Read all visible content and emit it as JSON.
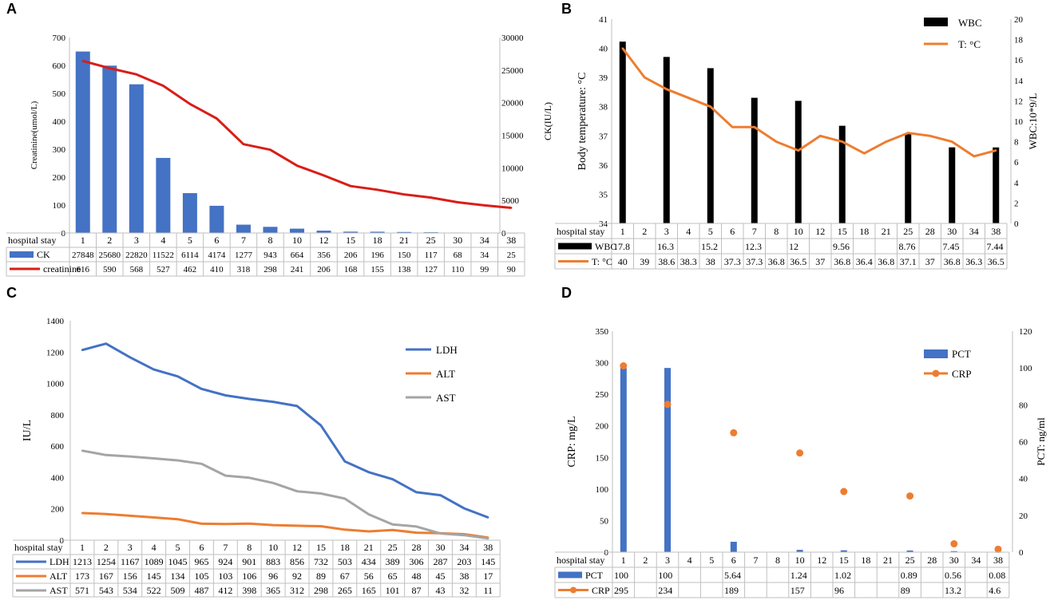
{
  "chart_data": [
    {
      "panel": "A",
      "type": "bar+line",
      "table_header": "hospital stay",
      "categories": [
        "1",
        "2",
        "3",
        "4",
        "5",
        "6",
        "7",
        "8",
        "10",
        "12",
        "15",
        "18",
        "21",
        "25",
        "30",
        "34",
        "38"
      ],
      "left_axis": {
        "label": "Creatinine(umol/L)",
        "range": [
          0,
          700
        ],
        "ticks": [
          "0",
          "100",
          "200",
          "300",
          "400",
          "500",
          "600",
          "700"
        ]
      },
      "right_axis": {
        "label": "CK(IU/L)",
        "range": [
          0,
          30000
        ],
        "ticks": [
          "0",
          "5000",
          "10000",
          "15000",
          "20000",
          "25000",
          "30000"
        ]
      },
      "series": [
        {
          "name": "CK",
          "kind": "bar",
          "axis": "right",
          "color": "#4472C4",
          "values": [
            27848,
            25680,
            22820,
            11522,
            6114,
            4174,
            1277,
            943,
            664,
            356,
            206,
            196,
            150,
            117,
            68,
            34,
            25
          ]
        },
        {
          "name": "creatinine",
          "kind": "line",
          "axis": "left",
          "color": "#D91E18",
          "values": [
            616,
            590,
            568,
            527,
            462,
            410,
            318,
            298,
            241,
            206,
            168,
            155,
            138,
            127,
            110,
            99,
            90
          ]
        }
      ]
    },
    {
      "panel": "B",
      "type": "bar+line",
      "table_header": "hospital stay",
      "categories": [
        "1",
        "2",
        "3",
        "4",
        "5",
        "6",
        "7",
        "8",
        "10",
        "12",
        "15",
        "18",
        "21",
        "25",
        "28",
        "30",
        "34",
        "38"
      ],
      "left_axis": {
        "label": "Body temperature: °C",
        "range": [
          34,
          41
        ],
        "ticks": [
          "34",
          "35",
          "36",
          "37",
          "38",
          "39",
          "40",
          "41"
        ]
      },
      "right_axis": {
        "label": "WBC:10*9/L",
        "range": [
          0,
          20
        ],
        "ticks": [
          "0",
          "2",
          "4",
          "6",
          "8",
          "10",
          "12",
          "14",
          "16",
          "18",
          "20"
        ]
      },
      "series": [
        {
          "name": "WBC",
          "kind": "bar",
          "axis": "right",
          "color": "#000000",
          "values": [
            17.8,
            null,
            16.3,
            null,
            15.2,
            null,
            12.3,
            null,
            12,
            null,
            9.56,
            null,
            null,
            8.76,
            null,
            7.45,
            null,
            7.44
          ],
          "labels": [
            "17.8",
            "",
            "16.3",
            "",
            "15.2",
            "",
            "12.3",
            "",
            "12",
            "",
            "9.56",
            "",
            "",
            "8.76",
            "",
            "7.45",
            "",
            "7.44"
          ]
        },
        {
          "name": "T: °C",
          "kind": "line",
          "axis": "left",
          "color": "#ED7D31",
          "values": [
            40,
            39,
            38.6,
            38.3,
            38,
            37.3,
            37.3,
            36.8,
            36.5,
            37,
            36.8,
            36.4,
            36.8,
            37.1,
            37,
            36.8,
            36.3,
            36.5
          ]
        }
      ]
    },
    {
      "panel": "C",
      "type": "line",
      "table_header": "hospital stay",
      "categories": [
        "1",
        "2",
        "3",
        "4",
        "5",
        "6",
        "7",
        "8",
        "10",
        "12",
        "15",
        "18",
        "21",
        "25",
        "28",
        "30",
        "34",
        "38"
      ],
      "left_axis": {
        "label": "IU/L",
        "range": [
          0,
          1400
        ],
        "ticks": [
          "0",
          "200",
          "400",
          "600",
          "800",
          "1000",
          "1200",
          "1400"
        ]
      },
      "series": [
        {
          "name": "LDH",
          "kind": "line",
          "color": "#4472C4",
          "values": [
            1213,
            1254,
            1167,
            1089,
            1045,
            965,
            924,
            901,
            883,
            856,
            732,
            503,
            434,
            389,
            306,
            287,
            203,
            145
          ]
        },
        {
          "name": "ALT",
          "kind": "line",
          "color": "#ED7D31",
          "values": [
            173,
            167,
            156,
            145,
            134,
            105,
            103,
            106,
            96,
            92,
            89,
            67,
            56,
            65,
            48,
            45,
            38,
            17
          ]
        },
        {
          "name": "AST",
          "kind": "line",
          "color": "#A5A5A5",
          "values": [
            571,
            543,
            534,
            522,
            509,
            487,
            412,
            398,
            365,
            312,
            298,
            265,
            165,
            101,
            87,
            43,
            32,
            11
          ]
        }
      ]
    },
    {
      "panel": "D",
      "type": "bar+scatter",
      "table_header": "hospital stay",
      "categories": [
        "1",
        "2",
        "3",
        "4",
        "5",
        "6",
        "7",
        "8",
        "10",
        "12",
        "15",
        "18",
        "21",
        "25",
        "28",
        "30",
        "34",
        "38"
      ],
      "left_axis": {
        "label": "CRP: mg/L",
        "range": [
          0,
          350
        ],
        "ticks": [
          "0",
          "50",
          "100",
          "150",
          "200",
          "250",
          "300",
          "350"
        ]
      },
      "right_axis": {
        "label": "PCT: ng/ml",
        "range": [
          0,
          120
        ],
        "ticks": [
          "0",
          "20",
          "40",
          "60",
          "80",
          "100",
          "120"
        ]
      },
      "series": [
        {
          "name": "PCT",
          "kind": "bar",
          "axis": "right",
          "color": "#4472C4",
          "values": [
            100,
            null,
            100,
            null,
            null,
            5.64,
            null,
            null,
            1.24,
            null,
            1.02,
            null,
            null,
            0.89,
            null,
            0.56,
            null,
            0.08
          ],
          "labels": [
            "100",
            "",
            "100",
            "",
            "",
            "5.64",
            "",
            "",
            "1.24",
            "",
            "1.02",
            "",
            "",
            "0.89",
            "",
            "0.56",
            "",
            "0.08"
          ]
        },
        {
          "name": "CRP",
          "kind": "scatter",
          "axis": "left",
          "color": "#ED7D31",
          "values": [
            295,
            null,
            234,
            null,
            null,
            189,
            null,
            null,
            157,
            null,
            96,
            null,
            null,
            89,
            null,
            13.2,
            null,
            4.6
          ],
          "labels": [
            "295",
            "",
            "234",
            "",
            "",
            "189",
            "",
            "",
            "157",
            "",
            "96",
            "",
            "",
            "89",
            "",
            "13.2",
            "",
            "4.6"
          ]
        }
      ]
    }
  ],
  "panel_letters": [
    "A",
    "B",
    "C",
    "D"
  ]
}
